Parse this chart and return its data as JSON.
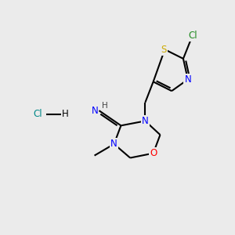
{
  "background_color": "#ebebeb",
  "bond_color": "#000000",
  "atom_colors": {
    "N": "#0000ff",
    "O": "#ff0000",
    "S": "#ccaa00",
    "Cl_atom": "#228B22",
    "Cl_hcl": "#008888",
    "C": "#000000",
    "H": "#444444"
  },
  "figsize": [
    3.0,
    3.0
  ],
  "dpi": 100
}
